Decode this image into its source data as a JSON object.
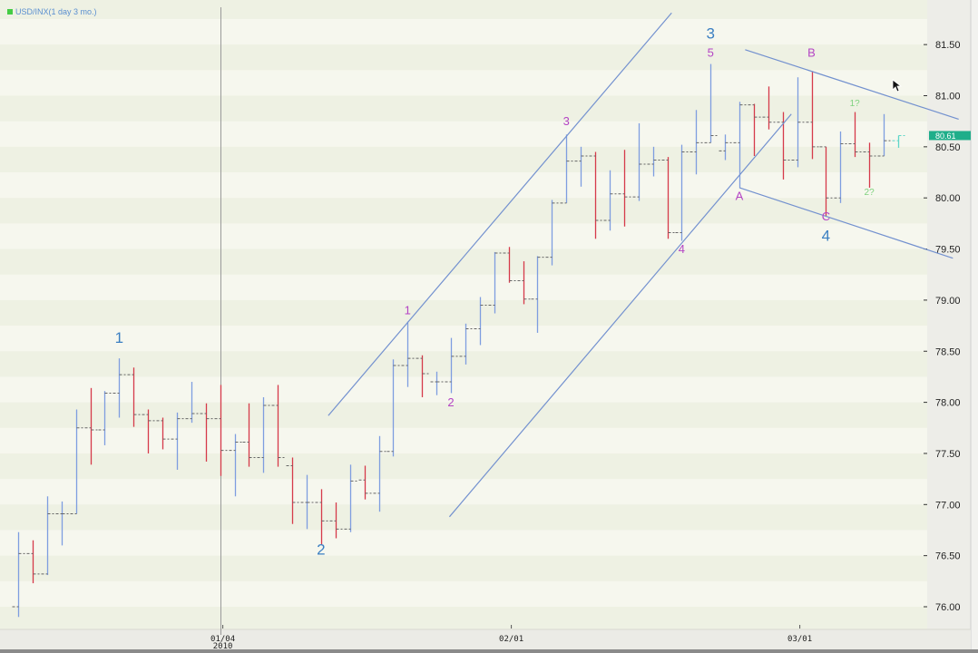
{
  "header": {
    "symbol_label": "USD/INX(1 day  3 mo.)"
  },
  "colors": {
    "up": "#7e9de0",
    "down": "#d63a4a",
    "last": "#5fd6c8",
    "trendline": "#7391cf",
    "wave_blue": "#3b7fc2",
    "wave_magenta": "#b444c4",
    "wave_green": "#7fd27f",
    "last_price_bg": "#1fae8a"
  },
  "chart_data": {
    "type": "ohlc",
    "title": "USD/INX(1 day  3 mo.)",
    "ylim": [
      75.85,
      82.0
    ],
    "yticks": [
      "76.00",
      "76.50",
      "77.00",
      "77.50",
      "78.00",
      "78.50",
      "79.00",
      "79.50",
      "80.00",
      "80.50",
      "81.00",
      "81.50"
    ],
    "xticks": [
      {
        "bar": 15,
        "label": "01/04",
        "sublabel": "2010"
      },
      {
        "bar": 35,
        "label": "02/01"
      },
      {
        "bar": 55,
        "label": "03/01"
      }
    ],
    "last_price": "80.61",
    "bars": [
      [
        76.0,
        76.73,
        75.9,
        76.52
      ],
      [
        76.52,
        76.65,
        76.23,
        76.32
      ],
      [
        76.32,
        77.08,
        76.31,
        76.91
      ],
      [
        76.91,
        77.03,
        76.6,
        76.91
      ],
      [
        76.91,
        77.93,
        76.91,
        77.75
      ],
      [
        77.75,
        78.14,
        77.39,
        77.73
      ],
      [
        77.73,
        78.11,
        77.58,
        78.09
      ],
      [
        78.09,
        78.43,
        77.85,
        78.27
      ],
      [
        78.27,
        78.34,
        77.76,
        77.88
      ],
      [
        77.88,
        77.93,
        77.5,
        77.82
      ],
      [
        77.82,
        77.85,
        77.54,
        77.64
      ],
      [
        77.64,
        77.9,
        77.34,
        77.84
      ],
      [
        77.84,
        78.2,
        77.8,
        77.89
      ],
      [
        77.89,
        77.99,
        77.42,
        77.84
      ],
      [
        77.84,
        78.17,
        77.28,
        77.53
      ],
      [
        77.53,
        77.69,
        77.08,
        77.61
      ],
      [
        77.61,
        77.99,
        77.37,
        77.46
      ],
      [
        77.46,
        78.05,
        77.31,
        77.97
      ],
      [
        77.97,
        78.17,
        77.37,
        77.46
      ],
      [
        77.38,
        77.46,
        76.81,
        77.02
      ],
      [
        77.02,
        77.29,
        76.76,
        77.02
      ],
      [
        77.02,
        77.15,
        76.61,
        76.84
      ],
      [
        76.84,
        77.02,
        76.67,
        76.76
      ],
      [
        76.76,
        77.39,
        76.73,
        77.23
      ],
      [
        77.24,
        77.38,
        77.05,
        77.11
      ],
      [
        77.11,
        77.67,
        76.93,
        77.52
      ],
      [
        77.52,
        78.42,
        77.47,
        78.36
      ],
      [
        78.36,
        78.79,
        78.15,
        78.43
      ],
      [
        78.43,
        78.46,
        78.05,
        78.28
      ],
      [
        78.2,
        78.3,
        78.07,
        78.2
      ],
      [
        78.2,
        78.63,
        78.09,
        78.45
      ],
      [
        78.45,
        78.77,
        78.37,
        78.72
      ],
      [
        78.72,
        79.03,
        78.56,
        78.95
      ],
      [
        78.95,
        79.47,
        78.87,
        79.46
      ],
      [
        79.46,
        79.52,
        79.17,
        79.19
      ],
      [
        79.19,
        79.38,
        78.96,
        79.01
      ],
      [
        79.01,
        79.43,
        78.68,
        79.42
      ],
      [
        79.42,
        79.98,
        79.34,
        79.95
      ],
      [
        79.95,
        80.62,
        79.95,
        80.36
      ],
      [
        80.36,
        80.5,
        80.11,
        80.41
      ],
      [
        80.41,
        80.45,
        79.6,
        79.78
      ],
      [
        79.78,
        80.27,
        79.68,
        80.04
      ],
      [
        80.04,
        80.47,
        79.72,
        80.01
      ],
      [
        80.01,
        80.73,
        79.97,
        80.33
      ],
      [
        80.33,
        80.5,
        80.21,
        80.37
      ],
      [
        80.37,
        80.4,
        79.6,
        79.66
      ],
      [
        79.66,
        80.52,
        79.58,
        80.45
      ],
      [
        80.45,
        80.86,
        80.23,
        80.54
      ],
      [
        80.54,
        81.31,
        80.54,
        80.61
      ],
      [
        80.46,
        80.62,
        80.37,
        80.54
      ],
      [
        80.54,
        80.94,
        80.1,
        80.91
      ],
      [
        80.91,
        80.92,
        80.41,
        80.79
      ],
      [
        80.79,
        81.09,
        80.67,
        80.74
      ],
      [
        80.74,
        80.84,
        80.18,
        80.37
      ],
      [
        80.37,
        81.18,
        80.3,
        80.74
      ],
      [
        80.74,
        81.24,
        80.38,
        80.5
      ],
      [
        80.5,
        80.5,
        79.82,
        80.0
      ],
      [
        80.0,
        80.65,
        79.95,
        80.53
      ],
      [
        80.53,
        80.84,
        80.4,
        80.45
      ],
      [
        80.45,
        80.54,
        80.1,
        80.41
      ],
      [
        80.41,
        80.82,
        80.41,
        80.56
      ],
      [
        80.56,
        80.61,
        80.49,
        80.61
      ]
    ],
    "trendlines": [
      {
        "name": "impulse-channel-upper",
        "from": [
          22.5,
          77.87
        ],
        "to": [
          46.3,
          81.81
        ]
      },
      {
        "name": "impulse-channel-lower",
        "from": [
          30.9,
          76.88
        ],
        "to": [
          54.6,
          80.82
        ]
      },
      {
        "name": "correction-channel-upper",
        "from": [
          51.4,
          81.45
        ],
        "to": [
          66.2,
          80.77
        ]
      },
      {
        "name": "correction-channel-lower",
        "from": [
          51.0,
          80.1
        ],
        "to": [
          65.8,
          79.41
        ]
      }
    ],
    "wave_labels": [
      {
        "text": "1",
        "bar": 8,
        "price": 78.58,
        "color": "blue",
        "size": 17
      },
      {
        "text": "2",
        "bar": 22,
        "price": 76.51,
        "color": "blue",
        "size": 17
      },
      {
        "text": "1",
        "bar": 28,
        "price": 78.86,
        "color": "magenta",
        "size": 13
      },
      {
        "text": "2",
        "bar": 31,
        "price": 77.96,
        "color": "magenta",
        "size": 13
      },
      {
        "text": "3",
        "bar": 39,
        "price": 80.71,
        "color": "magenta",
        "size": 13
      },
      {
        "text": "4",
        "bar": 47,
        "price": 79.46,
        "color": "magenta",
        "size": 13
      },
      {
        "text": "3",
        "bar": 49,
        "price": 81.56,
        "color": "blue",
        "size": 17
      },
      {
        "text": "5",
        "bar": 49,
        "price": 81.38,
        "color": "magenta",
        "size": 13
      },
      {
        "text": "A",
        "bar": 51,
        "price": 79.98,
        "color": "magenta",
        "size": 13
      },
      {
        "text": "B",
        "bar": 56,
        "price": 81.38,
        "color": "magenta",
        "size": 13
      },
      {
        "text": "C",
        "bar": 57,
        "price": 79.78,
        "color": "magenta",
        "size": 13
      },
      {
        "text": "4",
        "bar": 57,
        "price": 79.58,
        "color": "blue",
        "size": 17
      },
      {
        "text": "1?",
        "bar": 59,
        "price": 80.9,
        "color": "green",
        "size": 10
      },
      {
        "text": "2?",
        "bar": 60,
        "price": 80.03,
        "color": "green",
        "size": 10
      }
    ]
  }
}
